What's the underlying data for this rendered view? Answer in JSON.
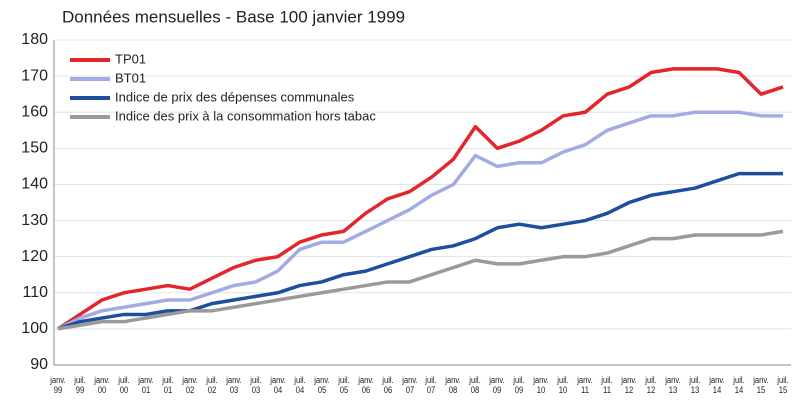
{
  "chart_data": {
    "type": "line",
    "title": "Données mensuelles - Base 100 janvier 1999",
    "categories": [
      "janv. 99",
      "juil. 99",
      "janv. 00",
      "juil. 00",
      "janv. 01",
      "juil. 01",
      "janv. 02",
      "juil. 02",
      "janv. 03",
      "juil. 03",
      "janv. 04",
      "juil. 04",
      "janv. 05",
      "juil. 05",
      "janv. 06",
      "juil. 06",
      "janv. 07",
      "juil. 07",
      "janv. 08",
      "juil. 08",
      "janv. 09",
      "juil. 09",
      "janv. 10",
      "juil. 10",
      "janv. 11",
      "juil. 11",
      "janv. 12",
      "juil. 12",
      "janv. 13",
      "juil. 13",
      "janv. 14",
      "juil. 14",
      "janv. 15",
      "juil. 15"
    ],
    "series": [
      {
        "name": "TP01",
        "color": "#e3262b",
        "values": [
          100,
          104,
          108,
          110,
          111,
          112,
          111,
          114,
          117,
          119,
          120,
          124,
          126,
          127,
          132,
          136,
          138,
          142,
          147,
          156,
          150,
          152,
          155,
          159,
          160,
          165,
          167,
          171,
          172,
          172,
          172,
          171,
          165,
          167
        ]
      },
      {
        "name": "BT01",
        "color": "#a2abe3",
        "values": [
          100,
          103,
          105,
          106,
          107,
          108,
          108,
          110,
          112,
          113,
          116,
          122,
          124,
          124,
          127,
          130,
          133,
          137,
          140,
          148,
          145,
          146,
          146,
          149,
          151,
          155,
          157,
          159,
          159,
          160,
          160,
          160,
          159,
          159
        ]
      },
      {
        "name": "Indice de prix des dépenses communales",
        "color": "#1d4f9e",
        "values": [
          100,
          102,
          103,
          104,
          104,
          105,
          105,
          107,
          108,
          109,
          110,
          112,
          113,
          115,
          116,
          118,
          120,
          122,
          123,
          125,
          128,
          129,
          128,
          129,
          130,
          132,
          135,
          137,
          138,
          139,
          141,
          143,
          143,
          143
        ]
      },
      {
        "name": "Indice des prix à la consommation hors tabac",
        "color": "#9a9a9a",
        "values": [
          100,
          101,
          102,
          102,
          103,
          104,
          105,
          105,
          106,
          107,
          108,
          109,
          110,
          111,
          112,
          113,
          113,
          115,
          117,
          119,
          118,
          118,
          119,
          120,
          120,
          121,
          123,
          125,
          125,
          126,
          126,
          126,
          126,
          127
        ]
      }
    ],
    "ylim": [
      90,
      180
    ],
    "yticks": [
      90,
      100,
      110,
      120,
      130,
      140,
      150,
      160,
      170,
      180
    ],
    "grid": true
  }
}
